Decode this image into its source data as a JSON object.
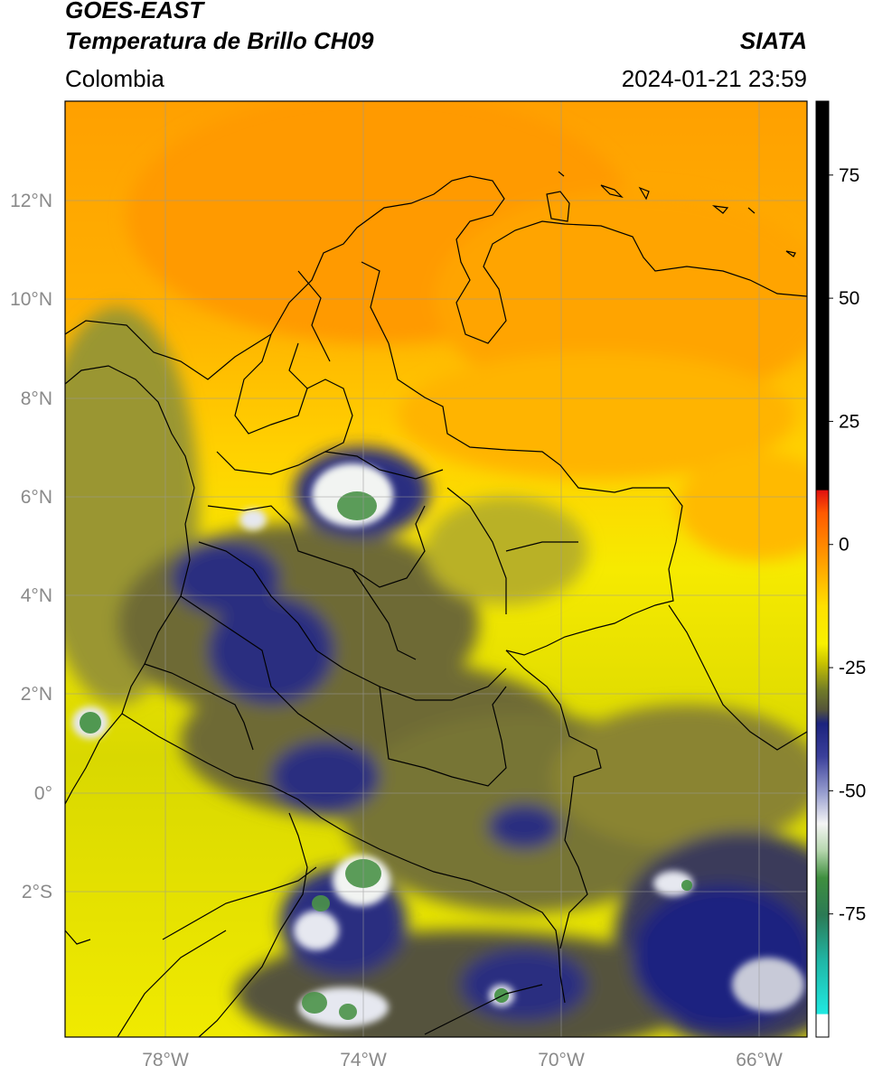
{
  "header": {
    "satellite": "GOES-EAST",
    "product": "Temperatura de Brillo CH09",
    "agency": "SIATA",
    "region": "Colombia",
    "datetime": "2024-01-21 23:59"
  },
  "map": {
    "lat_labels": [
      "12°N",
      "10°N",
      "8°N",
      "6°N",
      "4°N",
      "2°N",
      "0°",
      "2°S"
    ],
    "lon_labels": [
      "78°W",
      "74°W",
      "70°W",
      "66°W"
    ],
    "lon_range": [
      -80,
      -65
    ],
    "lat_range": [
      -5,
      14
    ],
    "gridlines": true
  },
  "colorbar": {
    "ticks": [
      "75",
      "50",
      "25",
      "0",
      "-25",
      "-50",
      "-75"
    ],
    "tick_values": [
      75,
      50,
      25,
      0,
      -25,
      -50,
      -75
    ],
    "range": [
      -100,
      90
    ],
    "units": "",
    "colors": {
      "warm_black": "#000000",
      "red": "#e01010",
      "orange": "#ff9a00",
      "yellow": "#f8f000",
      "olive": "#707a28",
      "navy": "#1c237e",
      "white": "#f2f4f2",
      "green": "#3f8f3f",
      "teal": "#20d8c8"
    }
  }
}
